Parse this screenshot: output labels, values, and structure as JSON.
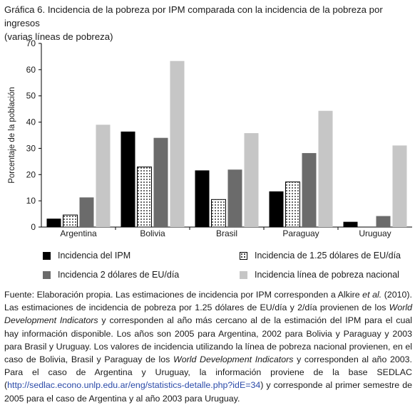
{
  "header": {
    "title_line1": "Gráfica 6. Incidencia de la pobreza por IPM comparada con la incidencia de la pobreza por ingresos",
    "title_line2": "(varias líneas de pobreza)"
  },
  "chart_data": {
    "type": "bar",
    "ylabel": "Porcentaje de la población",
    "ylim": [
      0,
      70
    ],
    "yticks": [
      0,
      10,
      20,
      30,
      40,
      50,
      60,
      70
    ],
    "grid": false,
    "legend_position": "bottom",
    "categories": [
      "Argentina",
      "Bolivia",
      "Brasil",
      "Paraguay",
      "Uruguay"
    ],
    "series": [
      {
        "name": "Incidencia del IPM",
        "values": [
          3.2,
          36.4,
          21.6,
          13.6,
          2.0
        ],
        "style": "solid",
        "color": "#000000"
      },
      {
        "name": "Incidencia de 1.25 dólares de EU/día",
        "values": [
          4.6,
          22.9,
          10.5,
          17.2,
          null
        ],
        "style": "dotted",
        "color": "#ffffff"
      },
      {
        "name": "Incidencia 2 dólares de EU/día",
        "values": [
          11.3,
          34.0,
          21.9,
          28.2,
          4.2
        ],
        "style": "solid",
        "color": "#6b6b6b"
      },
      {
        "name": "Incidencia línea de pobreza nacional",
        "values": [
          39.0,
          63.3,
          35.8,
          44.3,
          31.1
        ],
        "style": "solid",
        "color": "#c6c6c6"
      }
    ]
  },
  "legend": {
    "ipm": "Incidencia del IPM",
    "usd125": "Incidencia de 1.25 dólares de EU/día",
    "usd2": "Incidencia 2 dólares de EU/día",
    "national": "Incidencia línea de pobreza nacional"
  },
  "note": {
    "p1": "Fuente: Elaboración propia. Las estimaciones de incidencia por IPM corresponden a Alkire ",
    "etal": "et al.",
    "p2": " (2010). Las estimaciones de incidencia de pobreza por 1.25 dólares de EU/día y 2/día provienen de los ",
    "wdi1": "World Development Indicators",
    "p3": " y corresponden al año más cercano al de la estimación del IPM para el cual hay información disponible. Los años son 2005 para Argentina, 2002 para Bolivia y Paraguay y 2003 para Brasil y Uruguay. Los valores de incidencia utilizando la línea de pobreza nacional provienen, en el caso de Bolivia, Brasil y Paraguay de los ",
    "wdi2": "World Development Indicators",
    "p4": " y corresponden al año 2003. Para el caso de Argentina y Uruguay, la información proviene de la base SEDLAC (",
    "link": "http://sedlac.econo.unlp.edu.ar/eng/statistics-detalle.php?idE=34",
    "p5": ") y corresponde al primer semestre de 2005 para el caso de Argentina y al año 2003 para Uruguay."
  }
}
